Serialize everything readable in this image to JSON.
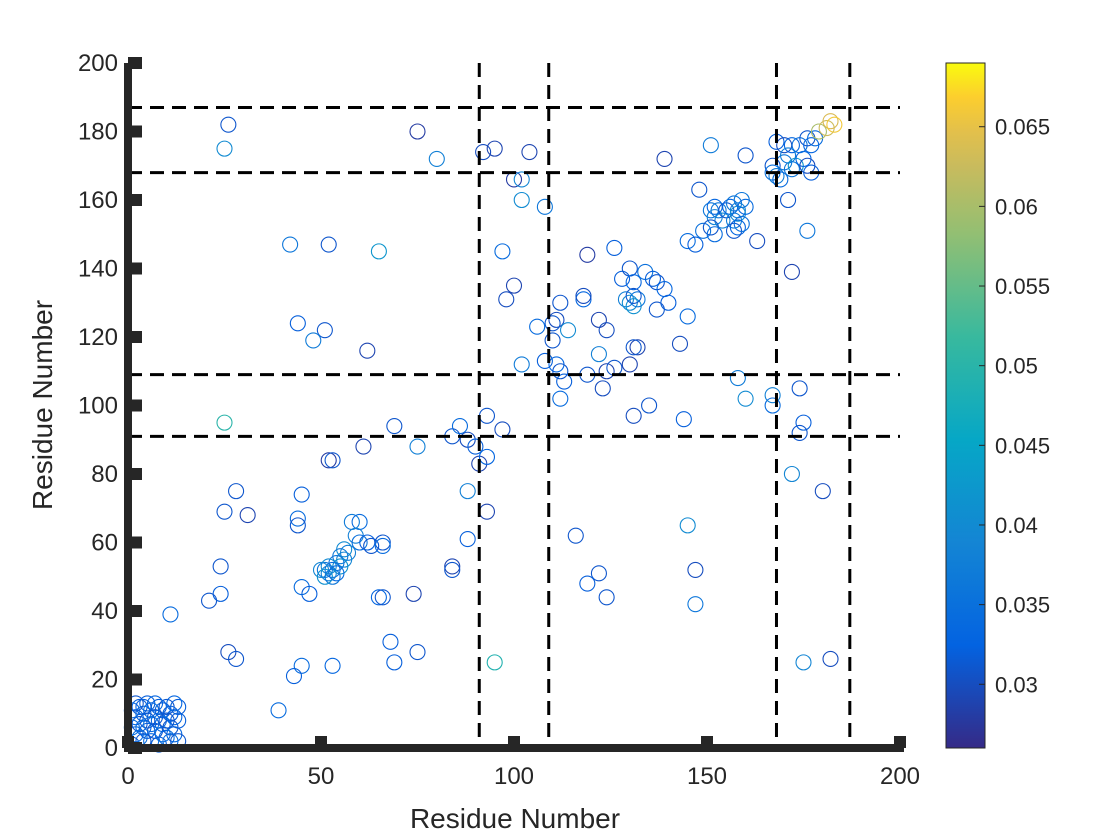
{
  "chart_data": {
    "type": "scatter",
    "title": "",
    "xlabel": "Residue Number",
    "ylabel": "Residue Number",
    "xlim": [
      0,
      200
    ],
    "ylim": [
      0,
      200
    ],
    "xticks": [
      0,
      50,
      100,
      150,
      200
    ],
    "yticks": [
      0,
      20,
      40,
      60,
      80,
      100,
      120,
      140,
      160,
      180,
      200
    ],
    "grid": false,
    "boundary_lines": {
      "vertical_x": [
        91,
        109,
        168,
        187
      ],
      "horizontal_y": [
        91,
        109,
        168,
        187
      ],
      "style": "dashed"
    },
    "colorbar": {
      "min": 0.026,
      "max": 0.069,
      "ticks": [
        0.03,
        0.035,
        0.04,
        0.045,
        0.05,
        0.055,
        0.06,
        0.065
      ],
      "tick_labels": [
        "0.03",
        "0.035",
        "0.04",
        "0.045",
        "0.05",
        "0.055",
        "0.06",
        "0.065"
      ],
      "colormap": "parula"
    },
    "points": [
      {
        "x": 1,
        "y": 1,
        "v": 0.032
      },
      {
        "x": 2,
        "y": 4,
        "v": 0.034
      },
      {
        "x": 3,
        "y": 7,
        "v": 0.031
      },
      {
        "x": 4,
        "y": 10,
        "v": 0.033
      },
      {
        "x": 5,
        "y": 13,
        "v": 0.032
      },
      {
        "x": 6,
        "y": 2,
        "v": 0.034
      },
      {
        "x": 7,
        "y": 5,
        "v": 0.031
      },
      {
        "x": 8,
        "y": 8,
        "v": 0.033
      },
      {
        "x": 9,
        "y": 11,
        "v": 0.032
      },
      {
        "x": 10,
        "y": 3,
        "v": 0.034
      },
      {
        "x": 11,
        "y": 6,
        "v": 0.031
      },
      {
        "x": 12,
        "y": 9,
        "v": 0.033
      },
      {
        "x": 13,
        "y": 12,
        "v": 0.032
      },
      {
        "x": 2,
        "y": 9,
        "v": 0.033
      },
      {
        "x": 4,
        "y": 2,
        "v": 0.031
      },
      {
        "x": 6,
        "y": 11,
        "v": 0.034
      },
      {
        "x": 8,
        "y": 1,
        "v": 0.032
      },
      {
        "x": 10,
        "y": 12,
        "v": 0.031
      },
      {
        "x": 12,
        "y": 4,
        "v": 0.033
      },
      {
        "x": 1,
        "y": 6,
        "v": 0.034
      },
      {
        "x": 3,
        "y": 12,
        "v": 0.032
      },
      {
        "x": 5,
        "y": 8,
        "v": 0.031
      },
      {
        "x": 7,
        "y": 13,
        "v": 0.033
      },
      {
        "x": 9,
        "y": 4,
        "v": 0.034
      },
      {
        "x": 11,
        "y": 10,
        "v": 0.032
      },
      {
        "x": 13,
        "y": 2,
        "v": 0.031
      },
      {
        "x": 1,
        "y": 11,
        "v": 0.033
      },
      {
        "x": 3,
        "y": 3,
        "v": 0.034
      },
      {
        "x": 5,
        "y": 5,
        "v": 0.032
      },
      {
        "x": 7,
        "y": 9,
        "v": 0.031
      },
      {
        "x": 9,
        "y": 7,
        "v": 0.033
      },
      {
        "x": 11,
        "y": 2,
        "v": 0.034
      },
      {
        "x": 13,
        "y": 8,
        "v": 0.032
      },
      {
        "x": 2,
        "y": 13,
        "v": 0.031
      },
      {
        "x": 4,
        "y": 6,
        "v": 0.033
      },
      {
        "x": 6,
        "y": 7,
        "v": 0.034
      },
      {
        "x": 8,
        "y": 12,
        "v": 0.032
      },
      {
        "x": 10,
        "y": 8,
        "v": 0.031
      },
      {
        "x": 12,
        "y": 13,
        "v": 0.033
      },
      {
        "x": 4,
        "y": 12,
        "v": 0.032
      },
      {
        "x": 26,
        "y": 182,
        "v": 0.031
      },
      {
        "x": 25,
        "y": 175,
        "v": 0.04
      },
      {
        "x": 75,
        "y": 180,
        "v": 0.028
      },
      {
        "x": 80,
        "y": 172,
        "v": 0.038
      },
      {
        "x": 92,
        "y": 174,
        "v": 0.03
      },
      {
        "x": 95,
        "y": 175,
        "v": 0.029
      },
      {
        "x": 100,
        "y": 166,
        "v": 0.028
      },
      {
        "x": 102,
        "y": 166,
        "v": 0.039
      },
      {
        "x": 104,
        "y": 174,
        "v": 0.029
      },
      {
        "x": 102,
        "y": 160,
        "v": 0.04
      },
      {
        "x": 108,
        "y": 158,
        "v": 0.036
      },
      {
        "x": 42,
        "y": 147,
        "v": 0.036
      },
      {
        "x": 52,
        "y": 147,
        "v": 0.031
      },
      {
        "x": 65,
        "y": 145,
        "v": 0.042
      },
      {
        "x": 97,
        "y": 145,
        "v": 0.034
      },
      {
        "x": 44,
        "y": 124,
        "v": 0.032
      },
      {
        "x": 51,
        "y": 122,
        "v": 0.031
      },
      {
        "x": 48,
        "y": 119,
        "v": 0.037
      },
      {
        "x": 62,
        "y": 116,
        "v": 0.029
      },
      {
        "x": 98,
        "y": 131,
        "v": 0.03
      },
      {
        "x": 100,
        "y": 135,
        "v": 0.029
      },
      {
        "x": 25,
        "y": 95,
        "v": 0.05
      },
      {
        "x": 69,
        "y": 94,
        "v": 0.031
      },
      {
        "x": 75,
        "y": 88,
        "v": 0.038
      },
      {
        "x": 61,
        "y": 88,
        "v": 0.029
      },
      {
        "x": 84,
        "y": 91,
        "v": 0.031
      },
      {
        "x": 86,
        "y": 94,
        "v": 0.034
      },
      {
        "x": 88,
        "y": 90,
        "v": 0.03
      },
      {
        "x": 90,
        "y": 88,
        "v": 0.032
      },
      {
        "x": 91,
        "y": 83,
        "v": 0.029
      },
      {
        "x": 93,
        "y": 85,
        "v": 0.033
      },
      {
        "x": 93,
        "y": 97,
        "v": 0.031
      },
      {
        "x": 97,
        "y": 93,
        "v": 0.03
      },
      {
        "x": 52,
        "y": 84,
        "v": 0.028
      },
      {
        "x": 53,
        "y": 84,
        "v": 0.031
      },
      {
        "x": 28,
        "y": 75,
        "v": 0.031
      },
      {
        "x": 45,
        "y": 74,
        "v": 0.032
      },
      {
        "x": 88,
        "y": 75,
        "v": 0.038
      },
      {
        "x": 25,
        "y": 69,
        "v": 0.031
      },
      {
        "x": 31,
        "y": 68,
        "v": 0.029
      },
      {
        "x": 44,
        "y": 67,
        "v": 0.034
      },
      {
        "x": 44,
        "y": 65,
        "v": 0.031
      },
      {
        "x": 93,
        "y": 69,
        "v": 0.029
      },
      {
        "x": 88,
        "y": 61,
        "v": 0.032
      },
      {
        "x": 58,
        "y": 66,
        "v": 0.037
      },
      {
        "x": 60,
        "y": 66,
        "v": 0.034
      },
      {
        "x": 59,
        "y": 62,
        "v": 0.038
      },
      {
        "x": 60,
        "y": 60,
        "v": 0.035
      },
      {
        "x": 62,
        "y": 60,
        "v": 0.032
      },
      {
        "x": 63,
        "y": 59,
        "v": 0.031
      },
      {
        "x": 66,
        "y": 60,
        "v": 0.031
      },
      {
        "x": 66,
        "y": 59,
        "v": 0.034
      },
      {
        "x": 56,
        "y": 58,
        "v": 0.04
      },
      {
        "x": 57,
        "y": 57,
        "v": 0.038
      },
      {
        "x": 55,
        "y": 56,
        "v": 0.037
      },
      {
        "x": 56,
        "y": 55,
        "v": 0.039
      },
      {
        "x": 54,
        "y": 54,
        "v": 0.036
      },
      {
        "x": 55,
        "y": 53,
        "v": 0.041
      },
      {
        "x": 52,
        "y": 53,
        "v": 0.04
      },
      {
        "x": 53,
        "y": 52,
        "v": 0.035
      },
      {
        "x": 51,
        "y": 52,
        "v": 0.036
      },
      {
        "x": 50,
        "y": 52,
        "v": 0.039
      },
      {
        "x": 52,
        "y": 51,
        "v": 0.038
      },
      {
        "x": 53,
        "y": 50,
        "v": 0.036
      },
      {
        "x": 51,
        "y": 50,
        "v": 0.041
      },
      {
        "x": 54,
        "y": 51,
        "v": 0.034
      },
      {
        "x": 24,
        "y": 53,
        "v": 0.031
      },
      {
        "x": 24,
        "y": 45,
        "v": 0.032
      },
      {
        "x": 21,
        "y": 43,
        "v": 0.031
      },
      {
        "x": 45,
        "y": 47,
        "v": 0.034
      },
      {
        "x": 47,
        "y": 45,
        "v": 0.032
      },
      {
        "x": 84,
        "y": 53,
        "v": 0.029
      },
      {
        "x": 84,
        "y": 52,
        "v": 0.031
      },
      {
        "x": 65,
        "y": 44,
        "v": 0.033
      },
      {
        "x": 66,
        "y": 44,
        "v": 0.031
      },
      {
        "x": 74,
        "y": 45,
        "v": 0.029
      },
      {
        "x": 11,
        "y": 39,
        "v": 0.034
      },
      {
        "x": 68,
        "y": 31,
        "v": 0.032
      },
      {
        "x": 26,
        "y": 28,
        "v": 0.03
      },
      {
        "x": 28,
        "y": 26,
        "v": 0.031
      },
      {
        "x": 69,
        "y": 25,
        "v": 0.032
      },
      {
        "x": 75,
        "y": 28,
        "v": 0.031
      },
      {
        "x": 45,
        "y": 24,
        "v": 0.034
      },
      {
        "x": 53,
        "y": 24,
        "v": 0.033
      },
      {
        "x": 43,
        "y": 21,
        "v": 0.032
      },
      {
        "x": 39,
        "y": 11,
        "v": 0.034
      },
      {
        "x": 95,
        "y": 25,
        "v": 0.049
      },
      {
        "x": 112,
        "y": 130,
        "v": 0.031
      },
      {
        "x": 111,
        "y": 125,
        "v": 0.03
      },
      {
        "x": 110,
        "y": 124,
        "v": 0.031
      },
      {
        "x": 106,
        "y": 123,
        "v": 0.034
      },
      {
        "x": 110,
        "y": 119,
        "v": 0.031
      },
      {
        "x": 108,
        "y": 113,
        "v": 0.032
      },
      {
        "x": 102,
        "y": 112,
        "v": 0.037
      },
      {
        "x": 111,
        "y": 112,
        "v": 0.033
      },
      {
        "x": 112,
        "y": 110,
        "v": 0.031
      },
      {
        "x": 113,
        "y": 107,
        "v": 0.032
      },
      {
        "x": 112,
        "y": 102,
        "v": 0.034
      },
      {
        "x": 114,
        "y": 122,
        "v": 0.04
      },
      {
        "x": 118,
        "y": 131,
        "v": 0.033
      },
      {
        "x": 118,
        "y": 132,
        "v": 0.03
      },
      {
        "x": 119,
        "y": 144,
        "v": 0.028
      },
      {
        "x": 126,
        "y": 146,
        "v": 0.032
      },
      {
        "x": 122,
        "y": 125,
        "v": 0.029
      },
      {
        "x": 124,
        "y": 122,
        "v": 0.03
      },
      {
        "x": 122,
        "y": 115,
        "v": 0.038
      },
      {
        "x": 119,
        "y": 109,
        "v": 0.031
      },
      {
        "x": 123,
        "y": 105,
        "v": 0.03
      },
      {
        "x": 124,
        "y": 110,
        "v": 0.029
      },
      {
        "x": 126,
        "y": 111,
        "v": 0.031
      },
      {
        "x": 128,
        "y": 137,
        "v": 0.032
      },
      {
        "x": 130,
        "y": 140,
        "v": 0.031
      },
      {
        "x": 131,
        "y": 136,
        "v": 0.033
      },
      {
        "x": 129,
        "y": 131,
        "v": 0.038
      },
      {
        "x": 130,
        "y": 130,
        "v": 0.04
      },
      {
        "x": 131,
        "y": 129,
        "v": 0.041
      },
      {
        "x": 132,
        "y": 131,
        "v": 0.036
      },
      {
        "x": 131,
        "y": 132,
        "v": 0.031
      },
      {
        "x": 132,
        "y": 117,
        "v": 0.029
      },
      {
        "x": 131,
        "y": 117,
        "v": 0.031
      },
      {
        "x": 130,
        "y": 112,
        "v": 0.029
      },
      {
        "x": 131,
        "y": 97,
        "v": 0.03
      },
      {
        "x": 135,
        "y": 100,
        "v": 0.031
      },
      {
        "x": 134,
        "y": 139,
        "v": 0.035
      },
      {
        "x": 136,
        "y": 137,
        "v": 0.032
      },
      {
        "x": 137,
        "y": 136,
        "v": 0.031
      },
      {
        "x": 139,
        "y": 172,
        "v": 0.029
      },
      {
        "x": 139,
        "y": 134,
        "v": 0.033
      },
      {
        "x": 140,
        "y": 130,
        "v": 0.032
      },
      {
        "x": 137,
        "y": 128,
        "v": 0.031
      },
      {
        "x": 145,
        "y": 126,
        "v": 0.034
      },
      {
        "x": 143,
        "y": 118,
        "v": 0.03
      },
      {
        "x": 144,
        "y": 96,
        "v": 0.032
      },
      {
        "x": 145,
        "y": 148,
        "v": 0.034
      },
      {
        "x": 147,
        "y": 147,
        "v": 0.032
      },
      {
        "x": 148,
        "y": 163,
        "v": 0.031
      },
      {
        "x": 149,
        "y": 151,
        "v": 0.035
      },
      {
        "x": 151,
        "y": 176,
        "v": 0.037
      },
      {
        "x": 151,
        "y": 157,
        "v": 0.036
      },
      {
        "x": 152,
        "y": 158,
        "v": 0.033
      },
      {
        "x": 153,
        "y": 157,
        "v": 0.036
      },
      {
        "x": 152,
        "y": 155,
        "v": 0.038
      },
      {
        "x": 154,
        "y": 154,
        "v": 0.039
      },
      {
        "x": 155,
        "y": 157,
        "v": 0.031
      },
      {
        "x": 156,
        "y": 158,
        "v": 0.033
      },
      {
        "x": 157,
        "y": 159,
        "v": 0.036
      },
      {
        "x": 158,
        "y": 157,
        "v": 0.038
      },
      {
        "x": 158,
        "y": 156,
        "v": 0.04
      },
      {
        "x": 157,
        "y": 154,
        "v": 0.037
      },
      {
        "x": 158,
        "y": 152,
        "v": 0.033
      },
      {
        "x": 157,
        "y": 151,
        "v": 0.031
      },
      {
        "x": 159,
        "y": 153,
        "v": 0.035
      },
      {
        "x": 159,
        "y": 160,
        "v": 0.036
      },
      {
        "x": 160,
        "y": 158,
        "v": 0.034
      },
      {
        "x": 151,
        "y": 152,
        "v": 0.031
      },
      {
        "x": 152,
        "y": 150,
        "v": 0.034
      },
      {
        "x": 160,
        "y": 173,
        "v": 0.031
      },
      {
        "x": 163,
        "y": 148,
        "v": 0.03
      },
      {
        "x": 167,
        "y": 170,
        "v": 0.031
      },
      {
        "x": 168,
        "y": 177,
        "v": 0.032
      },
      {
        "x": 167,
        "y": 168,
        "v": 0.035
      },
      {
        "x": 168,
        "y": 167,
        "v": 0.037
      },
      {
        "x": 169,
        "y": 166,
        "v": 0.034
      },
      {
        "x": 170,
        "y": 171,
        "v": 0.036
      },
      {
        "x": 170,
        "y": 176,
        "v": 0.03
      },
      {
        "x": 172,
        "y": 176,
        "v": 0.033
      },
      {
        "x": 171,
        "y": 173,
        "v": 0.037
      },
      {
        "x": 172,
        "y": 169,
        "v": 0.036
      },
      {
        "x": 174,
        "y": 176,
        "v": 0.035
      },
      {
        "x": 173,
        "y": 170,
        "v": 0.042
      },
      {
        "x": 175,
        "y": 172,
        "v": 0.033
      },
      {
        "x": 176,
        "y": 170,
        "v": 0.03
      },
      {
        "x": 176,
        "y": 178,
        "v": 0.031
      },
      {
        "x": 177,
        "y": 176,
        "v": 0.033
      },
      {
        "x": 177,
        "y": 168,
        "v": 0.032
      },
      {
        "x": 178,
        "y": 178,
        "v": 0.034
      },
      {
        "x": 179,
        "y": 180,
        "v": 0.06
      },
      {
        "x": 181,
        "y": 181,
        "v": 0.063
      },
      {
        "x": 182,
        "y": 183,
        "v": 0.064
      },
      {
        "x": 183,
        "y": 182,
        "v": 0.066
      },
      {
        "x": 171,
        "y": 160,
        "v": 0.031
      },
      {
        "x": 176,
        "y": 151,
        "v": 0.036
      },
      {
        "x": 172,
        "y": 139,
        "v": 0.029
      },
      {
        "x": 158,
        "y": 108,
        "v": 0.037
      },
      {
        "x": 160,
        "y": 102,
        "v": 0.04
      },
      {
        "x": 167,
        "y": 100,
        "v": 0.034
      },
      {
        "x": 167,
        "y": 103,
        "v": 0.038
      },
      {
        "x": 174,
        "y": 105,
        "v": 0.031
      },
      {
        "x": 175,
        "y": 95,
        "v": 0.032
      },
      {
        "x": 174,
        "y": 92,
        "v": 0.031
      },
      {
        "x": 172,
        "y": 80,
        "v": 0.039
      },
      {
        "x": 180,
        "y": 75,
        "v": 0.03
      },
      {
        "x": 145,
        "y": 65,
        "v": 0.04
      },
      {
        "x": 116,
        "y": 62,
        "v": 0.031
      },
      {
        "x": 147,
        "y": 52,
        "v": 0.03
      },
      {
        "x": 122,
        "y": 51,
        "v": 0.031
      },
      {
        "x": 119,
        "y": 48,
        "v": 0.032
      },
      {
        "x": 124,
        "y": 44,
        "v": 0.031
      },
      {
        "x": 147,
        "y": 42,
        "v": 0.036
      },
      {
        "x": 175,
        "y": 25,
        "v": 0.039
      },
      {
        "x": 182,
        "y": 26,
        "v": 0.03
      }
    ]
  }
}
